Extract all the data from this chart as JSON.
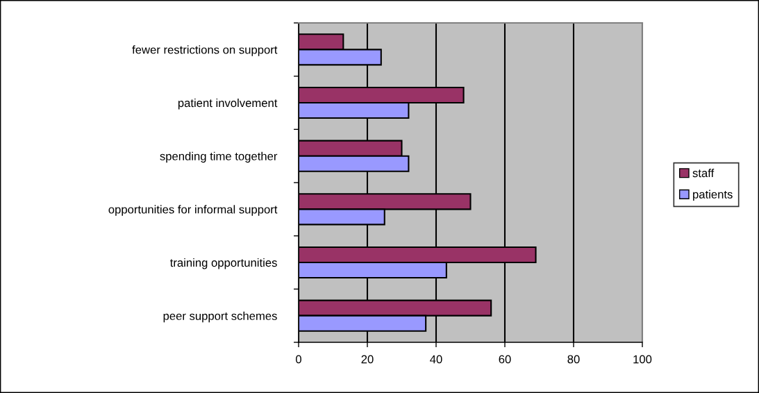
{
  "chart_data": {
    "type": "bar",
    "orientation": "horizontal",
    "categories": [
      "fewer restrictions on support",
      "patient involvement",
      "spending time together",
      "opportunities for informal support",
      "training opportunities",
      "peer support schemes"
    ],
    "series": [
      {
        "name": "staff",
        "color": "#993366",
        "values": [
          13,
          48,
          30,
          50,
          69,
          56
        ]
      },
      {
        "name": "patients",
        "color": "#9999ff",
        "values": [
          24,
          32,
          32,
          25,
          43,
          37
        ]
      }
    ],
    "xlim": [
      0,
      100
    ],
    "xticks": [
      0,
      20,
      40,
      60,
      80,
      100
    ],
    "grid": "x",
    "legend": "right"
  }
}
